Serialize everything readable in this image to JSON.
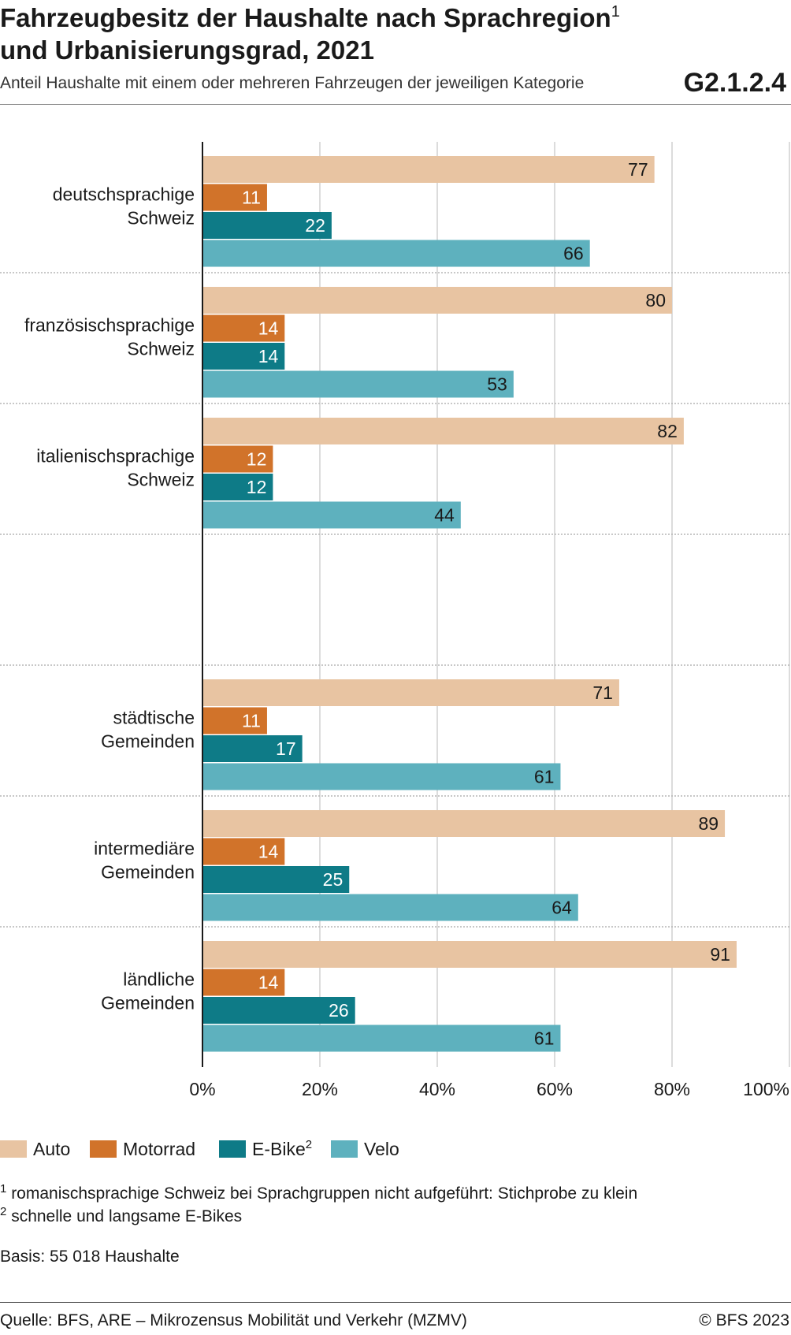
{
  "title_line1": "Fahrzeugbesitz der Haushalte nach Sprachregion",
  "title_footnote": "1",
  "title_line2": "und Urbanisierungsgrad, 2021",
  "subtitle": "Anteil Haushalte mit einem oder mehreren Fahrzeugen der jeweiligen Kategorie",
  "chart_id": "G2.1.2.4",
  "legend": [
    {
      "label": "Auto",
      "sup": ""
    },
    {
      "label": "Motorrad",
      "sup": ""
    },
    {
      "label": "E-Bike",
      "sup": "2"
    },
    {
      "label": "Velo",
      "sup": ""
    }
  ],
  "footnotes": [
    {
      "num": "1",
      "text": "romanischsprachige Schweiz bei Sprachgruppen nicht aufgeführt: Stichprobe zu klein"
    },
    {
      "num": "2",
      "text": "schnelle und langsame E-Bikes"
    }
  ],
  "basis": "Basis: 55 018 Haushalte",
  "source": "Quelle: BFS, ARE – Mikrozensus Mobilität und Verkehr (MZMV)",
  "copyright": "© BFS 2023",
  "colors": {
    "Auto": "#e8c4a2",
    "Motorrad": "#d1732a",
    "E-Bike": "#0e7b87",
    "Velo": "#5eb1be",
    "grid": "#d0d0d0",
    "axis": "#1a1a1a"
  },
  "chart_data": {
    "type": "bar",
    "orientation": "horizontal",
    "xlim": [
      0,
      100
    ],
    "x_ticks": [
      "0%",
      "20%",
      "40%",
      "60%",
      "80%",
      "100%"
    ],
    "grid": true,
    "legend_position": "bottom-left",
    "series_names": [
      "Auto",
      "Motorrad",
      "E-Bike",
      "Velo"
    ],
    "groups": [
      {
        "label": [
          "deutschsprachige",
          "Schweiz"
        ],
        "values": [
          77,
          11,
          22,
          66
        ]
      },
      {
        "label": [
          "französischsprachige",
          "Schweiz"
        ],
        "values": [
          80,
          14,
          14,
          53
        ]
      },
      {
        "label": [
          "italienischsprachige",
          "Schweiz"
        ],
        "values": [
          82,
          12,
          12,
          44
        ]
      },
      {
        "label": [],
        "values": []
      },
      {
        "label": [
          "städtische",
          "Gemeinden"
        ],
        "values": [
          71,
          11,
          17,
          61
        ]
      },
      {
        "label": [
          "intermediäre",
          "Gemeinden"
        ],
        "values": [
          89,
          14,
          25,
          64
        ]
      },
      {
        "label": [
          "ländliche",
          "Gemeinden"
        ],
        "values": [
          91,
          14,
          26,
          61
        ]
      }
    ]
  }
}
